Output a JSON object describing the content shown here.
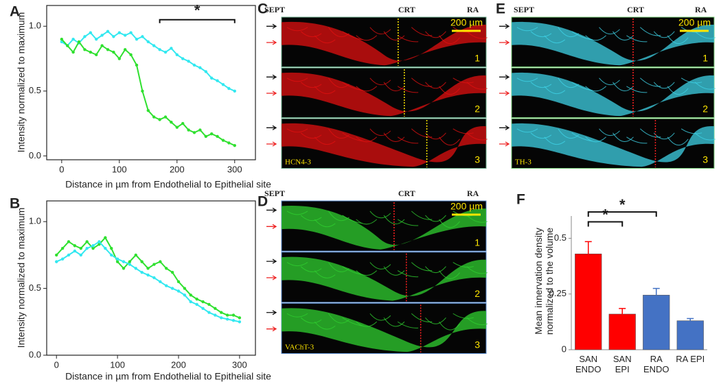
{
  "chart_data": [
    {
      "type": "line",
      "label": "A",
      "x_label": "Distance in µm from Endothelial to Epithelial site",
      "y_label": "Intensity normalized to maximum",
      "x": [
        0,
        10,
        20,
        30,
        40,
        50,
        60,
        70,
        80,
        90,
        100,
        110,
        120,
        130,
        140,
        150,
        160,
        170,
        180,
        190,
        200,
        210,
        220,
        230,
        240,
        250,
        260,
        270,
        280,
        290,
        300
      ],
      "series": [
        {
          "color": "#33e8f0",
          "values": [
            0.88,
            0.85,
            0.9,
            0.87,
            0.92,
            0.95,
            0.9,
            0.93,
            0.96,
            0.92,
            0.95,
            0.93,
            0.95,
            0.9,
            0.92,
            0.88,
            0.85,
            0.82,
            0.8,
            0.83,
            0.78,
            0.75,
            0.73,
            0.7,
            0.68,
            0.65,
            0.6,
            0.58,
            0.55,
            0.52,
            0.5
          ]
        },
        {
          "color": "#2fe02f",
          "values": [
            0.9,
            0.85,
            0.8,
            0.88,
            0.82,
            0.8,
            0.78,
            0.85,
            0.82,
            0.8,
            0.75,
            0.82,
            0.78,
            0.7,
            0.5,
            0.35,
            0.3,
            0.28,
            0.3,
            0.26,
            0.22,
            0.25,
            0.2,
            0.18,
            0.2,
            0.15,
            0.17,
            0.15,
            0.12,
            0.1,
            0.08
          ]
        }
      ],
      "xlim": [
        -26,
        336
      ],
      "xticks": [
        0,
        100,
        200,
        300
      ],
      "ylim": [
        -0.03,
        1.16
      ],
      "yticks": [
        {
          "value": 0,
          "label": "0.0"
        },
        0.5,
        {
          "value": 1,
          "label": "1.0"
        }
      ],
      "annotations": [
        {
          "text": "*",
          "x": [
            170,
            300
          ],
          "y": 1.05
        }
      ]
    },
    {
      "type": "line",
      "label": "B",
      "x_label": "Distance in µm from Endothelial to Epithelial site",
      "y_label": "Intensity normalized to maximum",
      "x": [
        0,
        10,
        20,
        30,
        40,
        50,
        60,
        70,
        80,
        90,
        100,
        110,
        120,
        130,
        140,
        150,
        160,
        170,
        180,
        190,
        200,
        210,
        220,
        230,
        240,
        250,
        260,
        270,
        280,
        290,
        300
      ],
      "series": [
        {
          "color": "#2fe02f",
          "values": [
            0.75,
            0.8,
            0.85,
            0.82,
            0.8,
            0.85,
            0.8,
            0.83,
            0.88,
            0.8,
            0.7,
            0.65,
            0.7,
            0.75,
            0.7,
            0.65,
            0.68,
            0.7,
            0.65,
            0.62,
            0.55,
            0.5,
            0.45,
            0.42,
            0.4,
            0.38,
            0.35,
            0.32,
            0.3,
            0.3,
            0.28
          ]
        },
        {
          "color": "#33e8f0",
          "values": [
            0.7,
            0.72,
            0.75,
            0.78,
            0.75,
            0.8,
            0.82,
            0.85,
            0.8,
            0.75,
            0.72,
            0.7,
            0.68,
            0.65,
            0.62,
            0.6,
            0.58,
            0.55,
            0.52,
            0.5,
            0.48,
            0.45,
            0.4,
            0.38,
            0.35,
            0.32,
            0.3,
            0.28,
            0.27,
            0.26,
            0.25
          ]
        }
      ],
      "xlim": [
        -16,
        326
      ],
      "xticks": [
        0,
        100,
        200,
        300
      ],
      "ylim": [
        0,
        1.155
      ],
      "yticks": [
        {
          "value": 0,
          "label": "0.0"
        },
        0.5,
        {
          "value": 1,
          "label": "1.0"
        }
      ]
    },
    {
      "type": "bar",
      "label": "F",
      "y_label": "Mean innervation density normalized to the volume",
      "categories": [
        "SAN ENDO",
        "SAN EPI",
        "RA ENDO",
        "RA EPI"
      ],
      "values": [
        0.43,
        0.16,
        0.245,
        0.13
      ],
      "errors": [
        0.055,
        0.025,
        0.03,
        0.01
      ],
      "colors": [
        "#ff0000",
        "#ff0000",
        "#4472c4",
        "#4472c4"
      ],
      "ylim": [
        0,
        0.6
      ],
      "yticks": [
        0,
        0.25,
        0.5
      ],
      "annotations": [
        {
          "text": "*",
          "x": [
            0,
            1
          ],
          "y": 0.574
        },
        {
          "text": "*",
          "x": [
            0,
            2
          ],
          "y": 0.618
        }
      ]
    }
  ],
  "images": [
    {
      "label": "C",
      "top": [
        "SEPT",
        "CRT",
        "RA"
      ],
      "scale": "200 µm",
      "strips": [
        "1",
        "2",
        "3"
      ],
      "marker": "HCN4-3"
    },
    {
      "label": "E",
      "top": [
        "SEPT",
        "CRT",
        "RA"
      ],
      "scale": "200 µm",
      "strips": [
        "1",
        "2",
        "3"
      ],
      "marker": "TH-3"
    },
    {
      "label": "D",
      "top": [
        "SEPT",
        "CRT",
        "RA"
      ],
      "scale": "200 µm",
      "strips": [
        "1",
        "2",
        "3"
      ],
      "marker": "VAChT-3"
    }
  ]
}
